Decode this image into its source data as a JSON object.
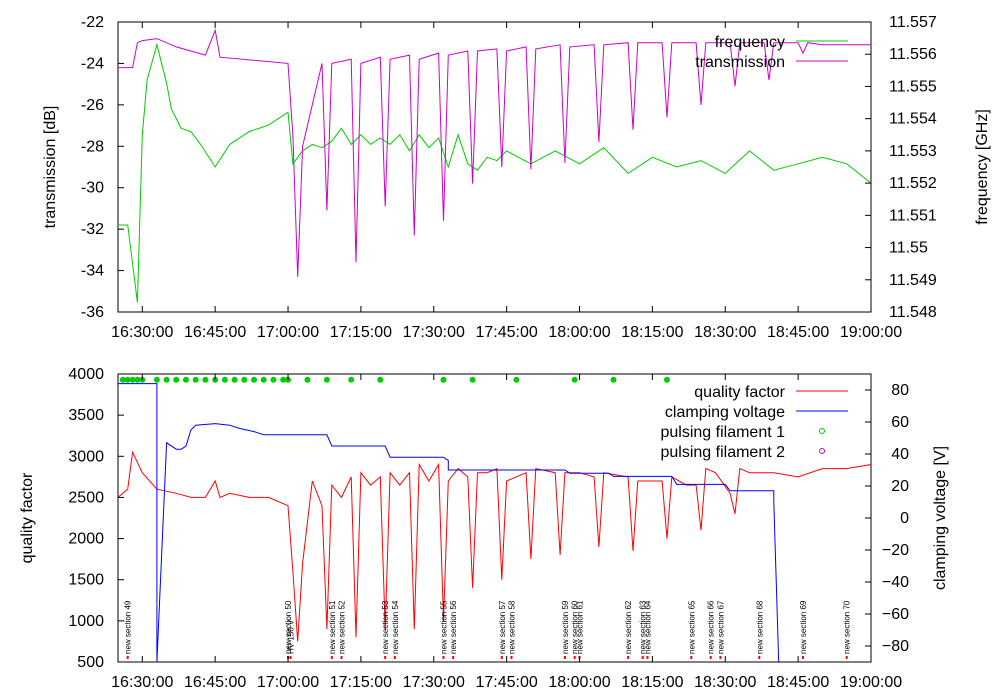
{
  "chart_data": [
    {
      "type": "line",
      "panel": "top",
      "xlabel": "",
      "ylabel": "transmission [dB]",
      "y2label": "frequency [GHz]",
      "x_range_min": [
        1625,
        1900
      ],
      "ylim": [
        -36,
        -22
      ],
      "y2lim": [
        11.548,
        11.557
      ],
      "x_tick_values": [
        1630,
        1645,
        1700,
        1715,
        1730,
        1745,
        1800,
        1815,
        1830,
        1845,
        1900
      ],
      "x_tick_labels": [
        "16:30:00",
        "16:45:00",
        "17:00:00",
        "17:15:00",
        "17:30:00",
        "17:45:00",
        "18:00:00",
        "18:15:00",
        "18:30:00",
        "18:45:00",
        "19:00:00"
      ],
      "y_tick_values": [
        -22,
        -24,
        -26,
        -28,
        -30,
        -32,
        -34,
        -36
      ],
      "y_tick_labels": [
        "-22",
        "-24",
        "-26",
        "-28",
        "-30",
        "-32",
        "-34",
        "-36"
      ],
      "y2_tick_values": [
        11.557,
        11.556,
        11.555,
        11.554,
        11.553,
        11.552,
        11.551,
        11.55,
        11.549,
        11.548
      ],
      "y2_tick_labels": [
        "11.557",
        "11.556",
        "11.555",
        "11.554",
        "11.553",
        "11.552",
        "11.551",
        "11.55",
        "11.549",
        "11.548"
      ],
      "legend_position": "top-right",
      "series": [
        {
          "name": "frequency",
          "axis": "y2",
          "color": "#00cc00",
          "x": [
            1625,
            1627,
            1629,
            1630,
            1631,
            1633,
            1635,
            1636,
            1638,
            1640,
            1642,
            1645,
            1648,
            1652,
            1656,
            1700,
            1701,
            1703,
            1705,
            1707,
            1709,
            1711,
            1713,
            1715,
            1717,
            1719,
            1721,
            1723,
            1725,
            1727,
            1729,
            1731,
            1733,
            1735,
            1737,
            1739,
            1741,
            1743,
            1745,
            1750,
            1755,
            1800,
            1805,
            1810,
            1815,
            1820,
            1825,
            1830,
            1835,
            1840,
            1845,
            1850,
            1855,
            1900
          ],
          "y": [
            11.5507,
            11.5507,
            11.5483,
            11.5535,
            11.5552,
            11.5563,
            11.5551,
            11.5543,
            11.5537,
            11.5536,
            11.5532,
            11.5525,
            11.5532,
            11.5536,
            11.5538,
            11.5542,
            11.5526,
            11.553,
            11.5532,
            11.5531,
            11.5533,
            11.5537,
            11.5532,
            11.5535,
            11.5532,
            11.5534,
            11.5532,
            11.5535,
            11.553,
            11.5535,
            11.5531,
            11.5534,
            11.5525,
            11.5535,
            11.5526,
            11.5524,
            11.5528,
            11.5527,
            11.553,
            11.5526,
            11.553,
            11.5526,
            11.5531,
            11.5523,
            11.5528,
            11.5525,
            11.5527,
            11.5523,
            11.553,
            11.5524,
            11.5526,
            11.5528,
            11.5526,
            11.552
          ]
        },
        {
          "name": "transmission",
          "axis": "y",
          "color": "#cc00cc",
          "x": [
            1625,
            1628,
            1629,
            1630,
            1633,
            1637,
            1643,
            1645,
            1646,
            1700,
            1701,
            1702,
            1703,
            1707,
            1708,
            1709,
            1713,
            1714,
            1715,
            1719,
            1720,
            1721,
            1725,
            1726,
            1727,
            1731,
            1732,
            1733,
            1737,
            1738,
            1739,
            1743,
            1744,
            1745,
            1749,
            1750,
            1751,
            1756,
            1757,
            1758,
            1803,
            1804,
            1805,
            1810,
            1811,
            1812,
            1817,
            1818,
            1819,
            1824,
            1825,
            1826,
            1831,
            1832,
            1833,
            1838,
            1839,
            1840,
            1845,
            1846,
            1847,
            1850,
            1855,
            1900
          ],
          "y": [
            -24.2,
            -24.2,
            -23.0,
            -22.9,
            -22.8,
            -23.2,
            -23.6,
            -22.4,
            -23.7,
            -24.0,
            -27.5,
            -34.3,
            -28.0,
            -24.0,
            -31.1,
            -24.0,
            -23.8,
            -33.6,
            -24.0,
            -23.7,
            -30.9,
            -23.8,
            -23.6,
            -32.3,
            -23.8,
            -23.5,
            -31.6,
            -23.6,
            -23.4,
            -29.8,
            -23.4,
            -23.3,
            -29.0,
            -23.4,
            -23.2,
            -29.1,
            -23.3,
            -23.1,
            -28.8,
            -23.2,
            -23.1,
            -27.8,
            -23.1,
            -23.0,
            -27.2,
            -23.0,
            -23.0,
            -26.6,
            -23.0,
            -23.0,
            -26.0,
            -23.0,
            -23.0,
            -25.1,
            -23.0,
            -23.0,
            -24.8,
            -23.0,
            -23.0,
            -23.5,
            -23.0,
            -23.1,
            -23.1,
            -23.1
          ]
        }
      ]
    },
    {
      "type": "line",
      "panel": "bottom",
      "xlabel": "",
      "ylabel": "quality factor",
      "y2label": "clamping voltage [V]",
      "x_range_min": [
        1625,
        1900
      ],
      "ylim": [
        500,
        4000
      ],
      "y2lim": [
        -90,
        90
      ],
      "x_tick_values": [
        1630,
        1645,
        1700,
        1715,
        1730,
        1745,
        1800,
        1815,
        1830,
        1845,
        1900
      ],
      "x_tick_labels": [
        "16:30:00",
        "16:45:00",
        "17:00:00",
        "17:15:00",
        "17:30:00",
        "17:45:00",
        "18:00:00",
        "18:15:00",
        "18:30:00",
        "18:45:00",
        "19:00:00"
      ],
      "y_tick_values": [
        4000,
        3500,
        3000,
        2500,
        2000,
        1500,
        1000,
        500
      ],
      "y_tick_labels": [
        "4000",
        "3500",
        "3000",
        "2500",
        "2000",
        "1500",
        "1000",
        "500"
      ],
      "y2_tick_values": [
        80,
        60,
        40,
        20,
        0,
        -20,
        -40,
        -60,
        -80
      ],
      "y2_tick_labels": [
        "80",
        "60",
        "40",
        "20",
        "0",
        "−20",
        "−40",
        "−60",
        "−80"
      ],
      "legend_position": "top-right",
      "series": [
        {
          "name": "quality factor",
          "axis": "y",
          "color": "#ff0000",
          "x": [
            1625,
            1627,
            1628,
            1630,
            1633,
            1637,
            1640,
            1643,
            1645,
            1646,
            1648,
            1652,
            1656,
            1700,
            1701,
            1702,
            1703,
            1705,
            1707,
            1708,
            1709,
            1711,
            1713,
            1714,
            1715,
            1717,
            1719,
            1720,
            1721,
            1723,
            1725,
            1726,
            1727,
            1729,
            1731,
            1732,
            1733,
            1735,
            1737,
            1738,
            1739,
            1741,
            1743,
            1744,
            1745,
            1749,
            1750,
            1751,
            1755,
            1756,
            1757,
            1800,
            1803,
            1804,
            1805,
            1810,
            1811,
            1812,
            1817,
            1818,
            1819,
            1822,
            1824,
            1825,
            1826,
            1828,
            1831,
            1832,
            1833,
            1835,
            1840,
            1845,
            1850,
            1855,
            1900
          ],
          "y": [
            2500,
            2600,
            3050,
            2800,
            2600,
            2550,
            2500,
            2500,
            2700,
            2500,
            2550,
            2500,
            2500,
            2400,
            1600,
            750,
            1700,
            2700,
            2400,
            900,
            2650,
            2500,
            2750,
            800,
            2800,
            2650,
            2750,
            900,
            2800,
            2650,
            2800,
            900,
            2900,
            2700,
            2900,
            1000,
            2700,
            2850,
            2750,
            1400,
            2800,
            2800,
            2850,
            1500,
            2700,
            2800,
            1750,
            2850,
            2800,
            1800,
            2800,
            2800,
            2750,
            1900,
            2800,
            2750,
            1850,
            2700,
            2700,
            2000,
            2750,
            2650,
            2650,
            2100,
            2850,
            2800,
            2550,
            2300,
            2850,
            2800,
            2800,
            2750,
            2850,
            2850,
            2900
          ]
        },
        {
          "name": "clamping voltage",
          "axis": "y2",
          "color": "#0000ff",
          "x": [
            1625,
            1633,
            1633,
            1635,
            1637,
            1638,
            1639,
            1640,
            1641,
            1645,
            1648,
            1650,
            1653,
            1655,
            1700,
            1708,
            1709,
            1720,
            1721,
            1732,
            1733,
            1733,
            1744,
            1757,
            1758,
            1806,
            1807,
            1819,
            1820,
            1830,
            1831,
            1840,
            1840,
            1841
          ],
          "y": [
            84,
            84,
            -90,
            47,
            43,
            43,
            45,
            55,
            58,
            59,
            58,
            56,
            54,
            52,
            52,
            52,
            45,
            45,
            38,
            38,
            36,
            30,
            30,
            30,
            28,
            28,
            26,
            26,
            21,
            21,
            17,
            17,
            10,
            -90
          ]
        },
        {
          "name": "pulsing filament 1",
          "type": "scatter",
          "axis": "y",
          "color": "#00cc00",
          "x": [
            1626,
            1627,
            1628,
            1629,
            1630,
            1633,
            1635,
            1637,
            1639,
            1641,
            1643,
            1645,
            1647,
            1649,
            1651,
            1653,
            1655,
            1657,
            1659,
            1700,
            1704,
            1708,
            1713,
            1719,
            1732,
            1738,
            1747,
            1759,
            1807,
            1818
          ],
          "y": [
            3930,
            3930,
            3930,
            3930,
            3930,
            3930,
            3930,
            3930,
            3930,
            3930,
            3930,
            3930,
            3930,
            3930,
            3930,
            3930,
            3930,
            3930,
            3930,
            3930,
            3930,
            3930,
            3930,
            3930,
            3930,
            3930,
            3930,
            3930,
            3930,
            3930
          ]
        },
        {
          "name": "pulsing filament 2",
          "type": "scatter",
          "axis": "y",
          "color": "#cc00cc",
          "x": [],
          "y": []
        }
      ],
      "annotations": [
        {
          "x": 1627,
          "label": "new section 49"
        },
        {
          "x": 1700,
          "label": "new section 50"
        },
        {
          "x": 1700.5,
          "label": "HV 156 V"
        },
        {
          "x": 1709,
          "label": "new section 51"
        },
        {
          "x": 1711,
          "label": "new section 52"
        },
        {
          "x": 1720,
          "label": "new section 53"
        },
        {
          "x": 1722,
          "label": "new section 54"
        },
        {
          "x": 1732,
          "label": "new section 55"
        },
        {
          "x": 1734,
          "label": "new section 56"
        },
        {
          "x": 1744,
          "label": "new section 57"
        },
        {
          "x": 1746,
          "label": "new section 58"
        },
        {
          "x": 1757,
          "label": "new section 59"
        },
        {
          "x": 1759,
          "label": "new section 60"
        },
        {
          "x": 1760,
          "label": "new section 61"
        },
        {
          "x": 1810,
          "label": "new section 62"
        },
        {
          "x": 1813,
          "label": "new section 63"
        },
        {
          "x": 1814,
          "label": "new section 64"
        },
        {
          "x": 1823,
          "label": "new section 65"
        },
        {
          "x": 1827,
          "label": "new section 66"
        },
        {
          "x": 1829,
          "label": "new section 67"
        },
        {
          "x": 1837,
          "label": "new section 68"
        },
        {
          "x": 1846,
          "label": "new section 69"
        },
        {
          "x": 1855,
          "label": "new section 70"
        }
      ]
    }
  ]
}
